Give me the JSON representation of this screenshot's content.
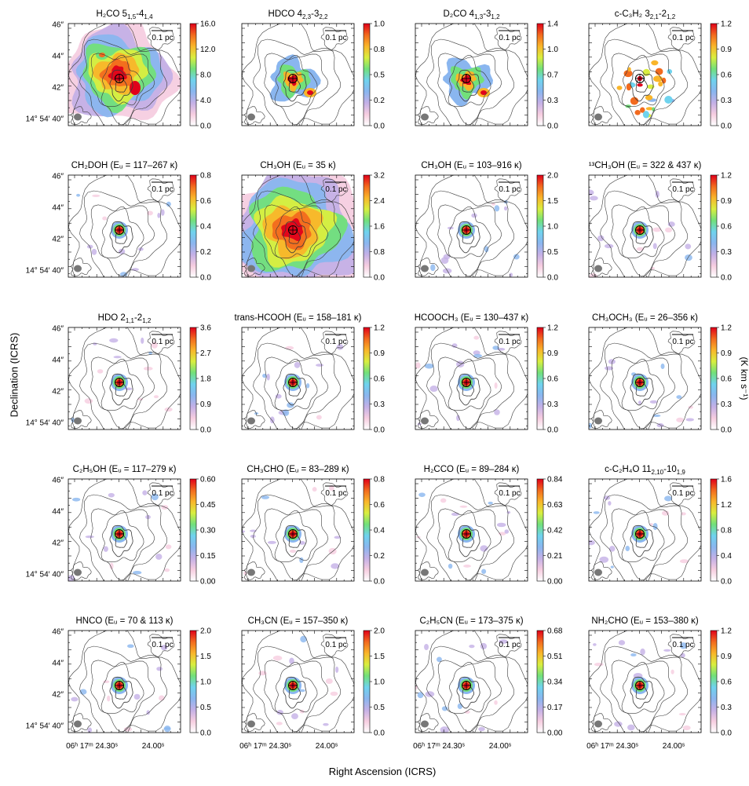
{
  "figure": {
    "ylabel": "Declination (ICRS)",
    "xlabel": "Right Ascension (ICRS)",
    "unit_label": "(K km s⁻¹)",
    "scalebar_label": "0.1 pc",
    "dec_ticks": [
      "46″",
      "44″",
      "42″",
      "14° 54′ 40″"
    ],
    "ra_ticks": [
      "06ʰ 17ᵐ 24.30ˢ",
      "24.00ˢ"
    ]
  },
  "colors": {
    "colormap": [
      "#ffffff",
      "#f6cde0",
      "#c4b0e6",
      "#8ab6ef",
      "#6fd3ee",
      "#72e07a",
      "#d9ee3f",
      "#f9b52a",
      "#f26a1e",
      "#e0001a"
    ],
    "contour": "#3a3a3a",
    "beam": "#777777",
    "source_marker": "#000000",
    "source_center": "#e0001a"
  },
  "chart_data": [
    {
      "type": "heatmap",
      "title": "H2CO 5(1,5)-4(1,4)",
      "title_main": "H₂CO 5",
      "title_sub": "1,5",
      "title_mid": "-4",
      "title_sub2": "1,4",
      "title_tail": "",
      "colorbar_ticks": [
        "0.0",
        "4.0",
        "8.0",
        "12.0",
        "16.0"
      ],
      "vmin": 0,
      "vmax": 16,
      "emission": "extended"
    },
    {
      "type": "heatmap",
      "title": "HDCO 4(2,3)-3(2,2)",
      "title_main": "HDCO  4",
      "title_sub": "2,3",
      "title_mid": "-3",
      "title_sub2": "2,2",
      "title_tail": "",
      "colorbar_ticks": [
        "0.0",
        "0.2",
        "0.5",
        "0.8",
        "1.0"
      ],
      "vmin": 0,
      "vmax": 1,
      "emission": "moderate"
    },
    {
      "type": "heatmap",
      "title": "D2CO 4(1,3)-3(1,2)",
      "title_main": "D₂CO  4",
      "title_sub": "1,3",
      "title_mid": "-3",
      "title_sub2": "1,2",
      "title_tail": "",
      "colorbar_ticks": [
        "0.0",
        "0.3",
        "0.7",
        "1.0",
        "1.4"
      ],
      "vmin": 0,
      "vmax": 1.4,
      "emission": "moderate"
    },
    {
      "type": "heatmap",
      "title": "c-C3H2 3(2,1)-2(1,2)",
      "title_main": "c-C₃H₂  3",
      "title_sub": "2,1",
      "title_mid": "-2",
      "title_sub2": "1,2",
      "title_tail": "",
      "colorbar_ticks": [
        "0.0",
        "0.3",
        "0.6",
        "0.9",
        "1.2"
      ],
      "vmin": 0,
      "vmax": 1.2,
      "emission": "clumpy"
    },
    {
      "type": "heatmap",
      "title": "CH2DOH (Eu = 117–267 K)",
      "title_main": "CH₂DOH (",
      "title_sub": "",
      "title_mid": "",
      "title_sub2": "",
      "title_tail": "Eᵤ = 117–267 ᴋ)",
      "colorbar_ticks": [
        "0.0",
        "0.2",
        "0.4",
        "0.6",
        "0.8"
      ],
      "vmin": 0,
      "vmax": 0.8,
      "emission": "compact"
    },
    {
      "type": "heatmap",
      "title": "CH3OH (Eu = 35 K)",
      "title_main": "CH₃OH (",
      "title_sub": "",
      "title_mid": "",
      "title_sub2": "",
      "title_tail": "Eᵤ = 35 ᴋ)",
      "colorbar_ticks": [
        "0.0",
        "0.8",
        "1.6",
        "2.4",
        "3.2"
      ],
      "vmin": 0,
      "vmax": 3.2,
      "emission": "extended"
    },
    {
      "type": "heatmap",
      "title": "CH3OH (Eu = 103–916 K)",
      "title_main": "CH₃OH (",
      "title_sub": "",
      "title_mid": "",
      "title_sub2": "",
      "title_tail": "Eᵤ = 103–916 ᴋ)",
      "colorbar_ticks": [
        "0.0",
        "0.5",
        "1.0",
        "1.5",
        "2.0"
      ],
      "vmin": 0,
      "vmax": 2,
      "emission": "compact"
    },
    {
      "type": "heatmap",
      "title": "13CH3OH (Eu = 322 & 437 K)",
      "title_main": "¹³CH₃OH (",
      "title_sub": "",
      "title_mid": "",
      "title_sub2": "",
      "title_tail": "Eᵤ = 322 & 437 ᴋ)",
      "colorbar_ticks": [
        "0.0",
        "0.3",
        "0.6",
        "0.9",
        "1.2"
      ],
      "vmin": 0,
      "vmax": 1.2,
      "emission": "compact"
    },
    {
      "type": "heatmap",
      "title": "HDO 2(1,1)-2(1,2)",
      "title_main": "HDO  2",
      "title_sub": "1,1",
      "title_mid": "-2",
      "title_sub2": "1,2",
      "title_tail": "",
      "colorbar_ticks": [
        "0.0",
        "0.9",
        "1.8",
        "2.7",
        "3.6"
      ],
      "vmin": 0,
      "vmax": 3.6,
      "emission": "compact"
    },
    {
      "type": "heatmap",
      "title": "trans-HCOOH (Eu = 158–181 K)",
      "title_main": "trans-HCOOH (",
      "title_sub": "",
      "title_mid": "",
      "title_sub2": "",
      "title_tail": "Eᵤ = 158–181 ᴋ)",
      "colorbar_ticks": [
        "0.0",
        "0.3",
        "0.6",
        "0.9",
        "1.2"
      ],
      "vmin": 0,
      "vmax": 1.2,
      "emission": "compact"
    },
    {
      "type": "heatmap",
      "title": "HCOOCH3 (Eu = 130–437 K)",
      "title_main": "HCOOCH₃ (",
      "title_sub": "",
      "title_mid": "",
      "title_sub2": "",
      "title_tail": "Eᵤ = 130–437 ᴋ)",
      "colorbar_ticks": [
        "0.0",
        "0.3",
        "0.6",
        "0.9",
        "1.2"
      ],
      "vmin": 0,
      "vmax": 1.2,
      "emission": "compact"
    },
    {
      "type": "heatmap",
      "title": "CH3OCH3 (Eu = 26–356 K)",
      "title_main": "CH₃OCH₃ (",
      "title_sub": "",
      "title_mid": "",
      "title_sub2": "",
      "title_tail": "Eᵤ = 26–356 ᴋ)",
      "colorbar_ticks": [
        "0.0",
        "0.3",
        "0.6",
        "0.9",
        "1.2"
      ],
      "vmin": 0,
      "vmax": 1.2,
      "emission": "compact"
    },
    {
      "type": "heatmap",
      "title": "C2H5OH (Eu = 117–279 K)",
      "title_main": "C₂H₅OH (",
      "title_sub": "",
      "title_mid": "",
      "title_sub2": "",
      "title_tail": "Eᵤ = 117–279 ᴋ)",
      "colorbar_ticks": [
        "0.00",
        "0.15",
        "0.30",
        "0.45",
        "0.60"
      ],
      "vmin": 0,
      "vmax": 0.6,
      "emission": "compact"
    },
    {
      "type": "heatmap",
      "title": "CH3CHO (Eu = 83–289 K)",
      "title_main": "CH₃CHO (",
      "title_sub": "",
      "title_mid": "",
      "title_sub2": "",
      "title_tail": "Eᵤ = 83–289 ᴋ)",
      "colorbar_ticks": [
        "0.0",
        "0.2",
        "0.4",
        "0.6",
        "0.8"
      ],
      "vmin": 0,
      "vmax": 0.8,
      "emission": "compact"
    },
    {
      "type": "heatmap",
      "title": "H2CCO (Eu = 89–284 K)",
      "title_main": "H₂CCO (",
      "title_sub": "",
      "title_mid": "",
      "title_sub2": "",
      "title_tail": "Eᵤ = 89–284 ᴋ)",
      "colorbar_ticks": [
        "0.00",
        "0.21",
        "0.42",
        "0.63",
        "0.84"
      ],
      "vmin": 0,
      "vmax": 0.84,
      "emission": "compact"
    },
    {
      "type": "heatmap",
      "title": "c-C2H4O 11(2,10)-10(1,9)",
      "title_main": "c-C₂H₄O  11",
      "title_sub": "2,10",
      "title_mid": "-10",
      "title_sub2": "1,9",
      "title_tail": "",
      "colorbar_ticks": [
        "0.0",
        "0.4",
        "0.8",
        "1.2",
        "1.6"
      ],
      "vmin": 0,
      "vmax": 1.6,
      "emission": "compact"
    },
    {
      "type": "heatmap",
      "title": "HNCO (Eu = 70 & 113 K)",
      "title_main": "HNCO (",
      "title_sub": "",
      "title_mid": "",
      "title_sub2": "",
      "title_tail": "Eᵤ = 70 & 113 ᴋ)",
      "colorbar_ticks": [
        "0.0",
        "0.5",
        "1.0",
        "1.5",
        "2.0"
      ],
      "vmin": 0,
      "vmax": 2,
      "emission": "compact"
    },
    {
      "type": "heatmap",
      "title": "CH3CN (Eu = 157–350 K)",
      "title_main": "CH₃CN (",
      "title_sub": "",
      "title_mid": "",
      "title_sub2": "",
      "title_tail": "Eᵤ = 157–350 ᴋ)",
      "colorbar_ticks": [
        "0.0",
        "0.5",
        "1.0",
        "1.5",
        "2.0"
      ],
      "vmin": 0,
      "vmax": 2,
      "emission": "compact"
    },
    {
      "type": "heatmap",
      "title": "C2H5CN (Eu = 173–375 K)",
      "title_main": "C₂H₅CN (",
      "title_sub": "",
      "title_mid": "",
      "title_sub2": "",
      "title_tail": "Eᵤ = 173–375 ᴋ)",
      "colorbar_ticks": [
        "0.00",
        "0.17",
        "0.34",
        "0.51",
        "0.68"
      ],
      "vmin": 0,
      "vmax": 0.68,
      "emission": "compact"
    },
    {
      "type": "heatmap",
      "title": "NH2CHO (Eu = 153–380 K)",
      "title_main": "NH₂CHO (",
      "title_sub": "",
      "title_mid": "",
      "title_sub2": "",
      "title_tail": "Eᵤ = 153–380 ᴋ)",
      "colorbar_ticks": [
        "0.0",
        "0.3",
        "0.6",
        "0.9",
        "1.2"
      ],
      "vmin": 0,
      "vmax": 1.2,
      "emission": "compact"
    }
  ]
}
